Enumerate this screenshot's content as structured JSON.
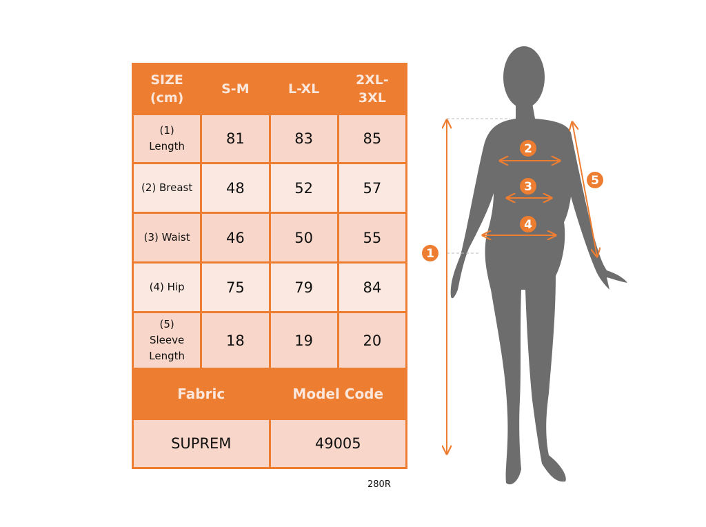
{
  "table": {
    "headers": [
      "SIZE (cm)",
      "S-M",
      "L-XL",
      "2XL-3XL"
    ],
    "header_lines": [
      [
        "SIZE",
        "(cm)"
      ],
      [
        "S-M"
      ],
      [
        "L-XL"
      ],
      [
        "2XL-",
        "3XL"
      ]
    ],
    "rows": [
      {
        "label": [
          "(1)",
          "Length"
        ],
        "values": [
          "81",
          "83",
          "85"
        ]
      },
      {
        "label": [
          "(2) Breast"
        ],
        "values": [
          "48",
          "52",
          "57"
        ]
      },
      {
        "label": [
          "(3) Waist"
        ],
        "values": [
          "46",
          "50",
          "55"
        ]
      },
      {
        "label": [
          "(4) Hip"
        ],
        "values": [
          "75",
          "79",
          "84"
        ]
      },
      {
        "label": [
          "(5)",
          "Sleeve",
          "Length"
        ],
        "values": [
          "18",
          "19",
          "20"
        ]
      }
    ],
    "footer_headers": [
      "Fabric",
      "Model Code"
    ],
    "footer_values": [
      "SUPREM",
      "49005"
    ]
  },
  "product_code": "280R",
  "figure": {
    "markers": [
      "1",
      "2",
      "3",
      "4",
      "5"
    ]
  },
  "colors": {
    "accent": "#ed7d31",
    "row_dark": "#f8d7ca",
    "row_light": "#fbe8e0",
    "silhouette": "#6d6d6d"
  }
}
